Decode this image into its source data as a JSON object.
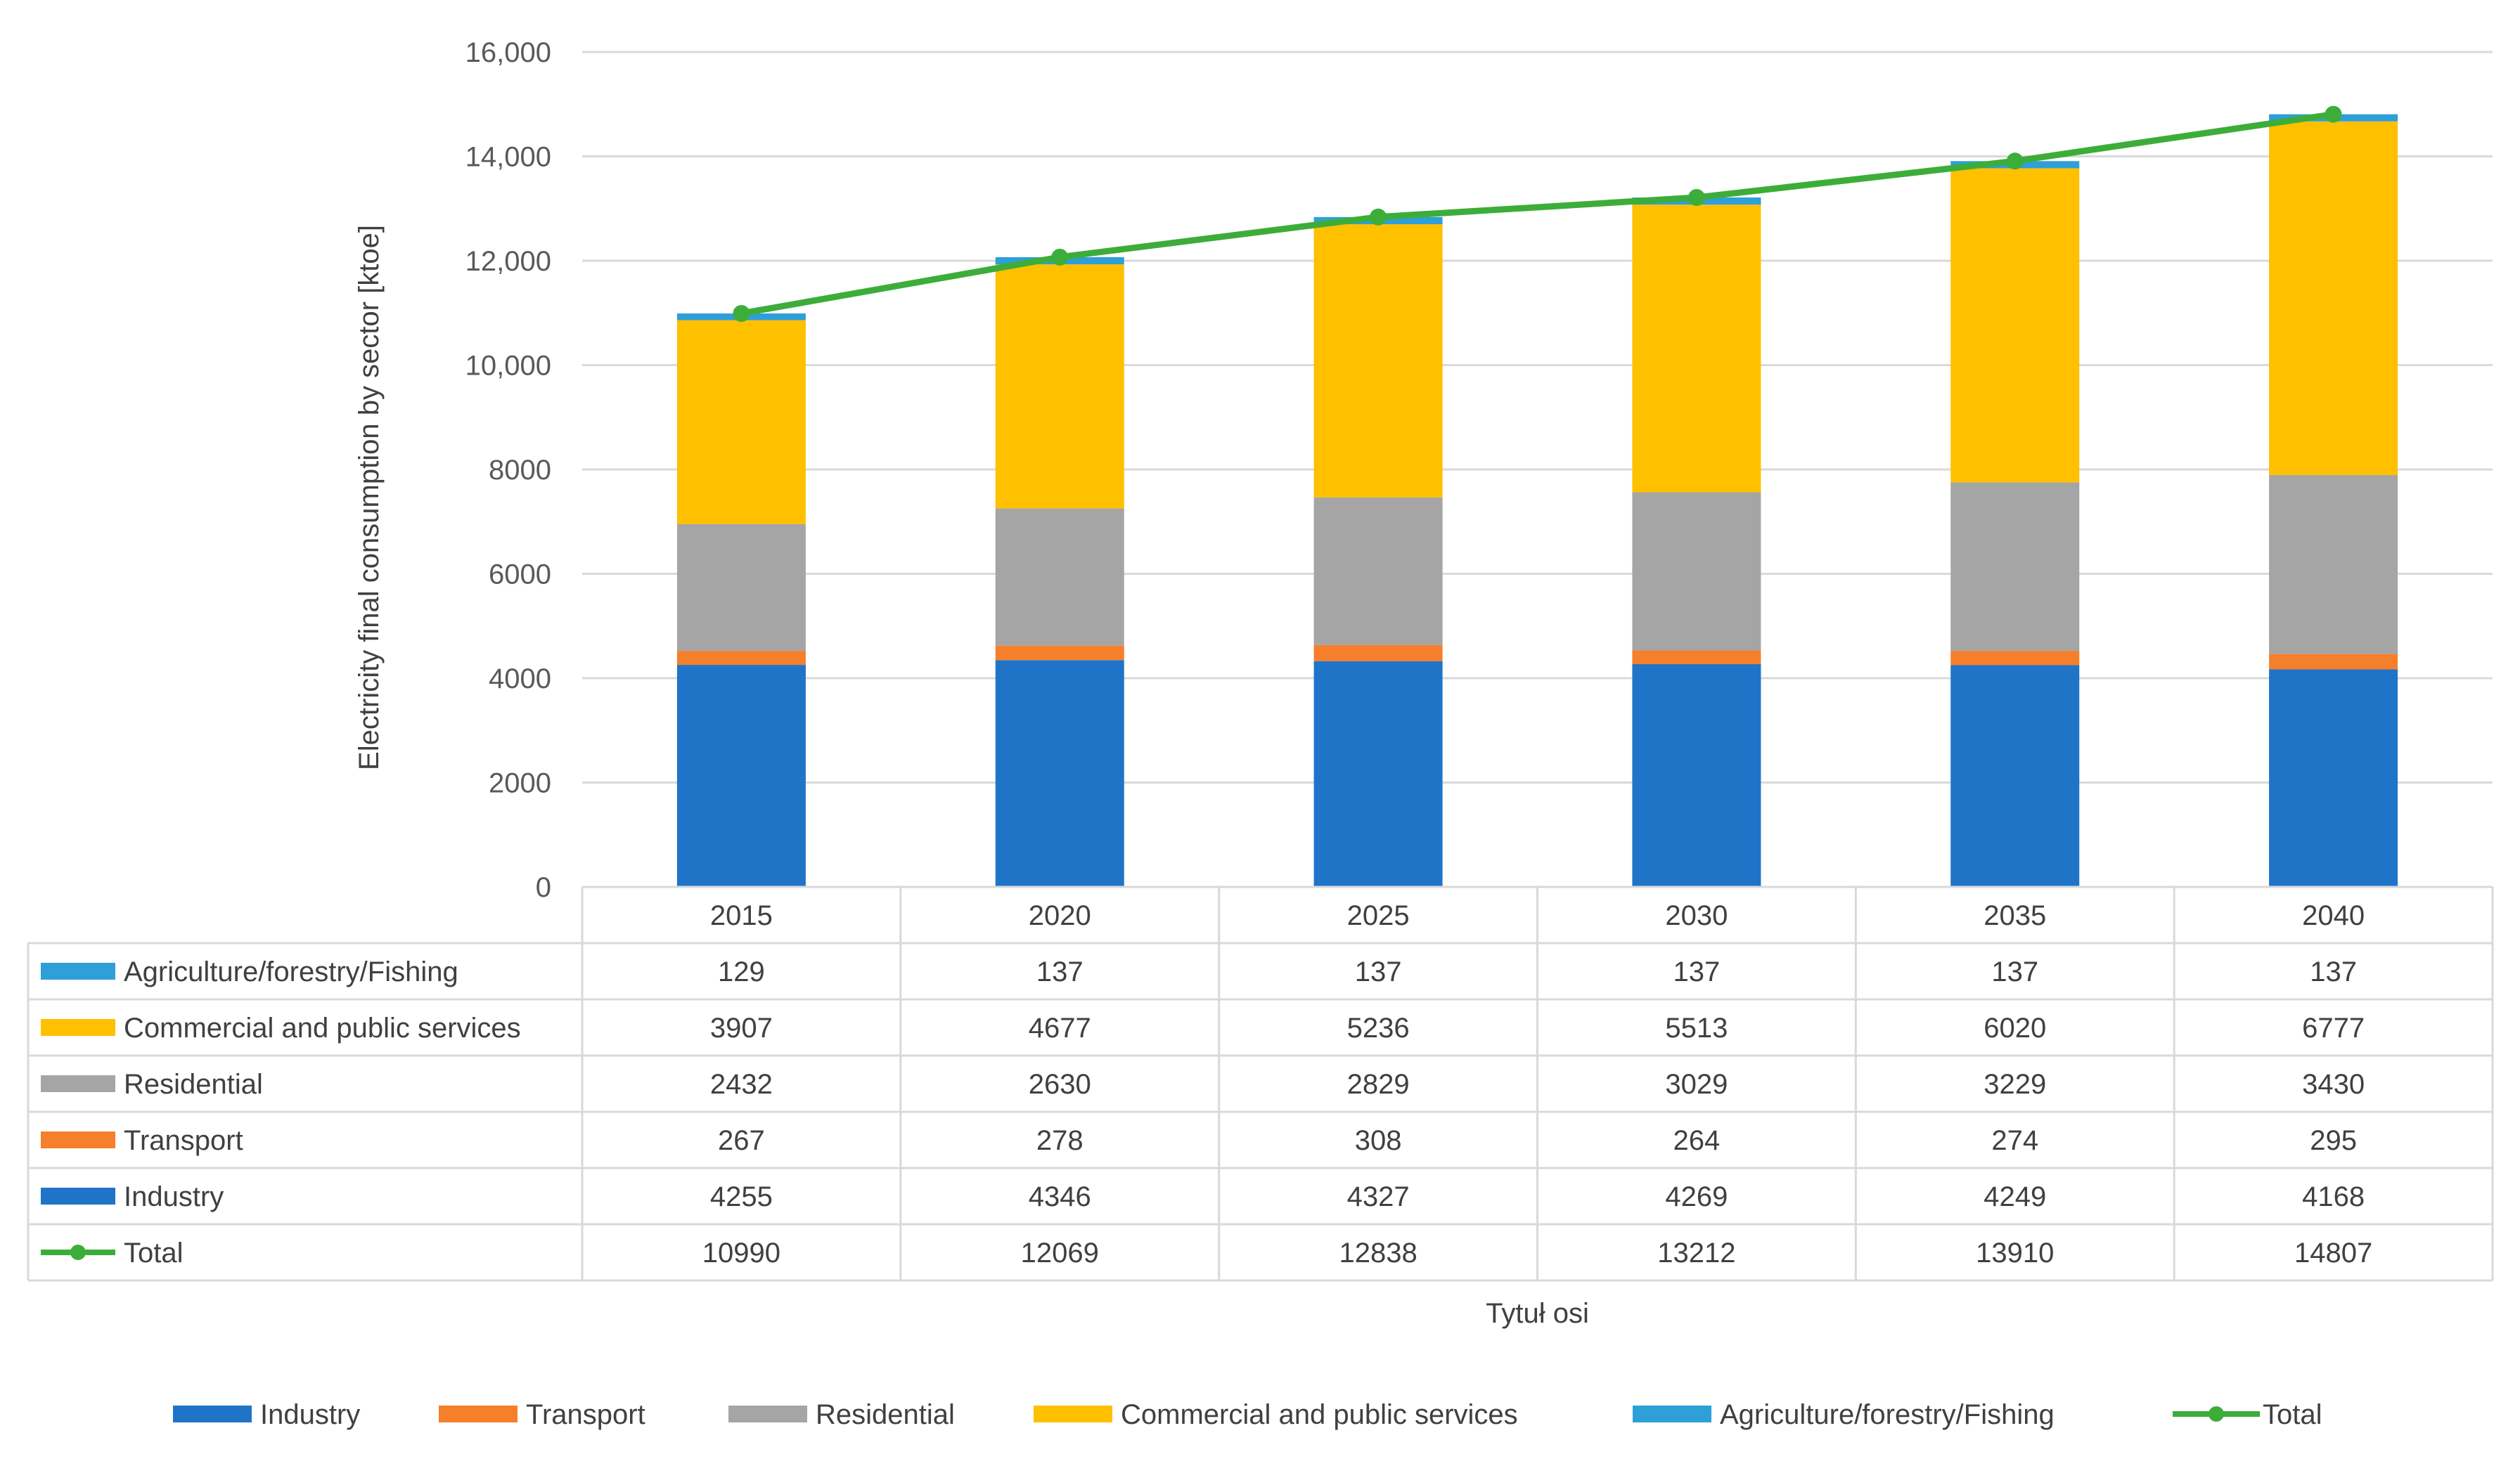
{
  "chart_data": {
    "type": "bar",
    "stacked": true,
    "ylabel": "Electricity final consumption by sector [ktoe]",
    "xlabel": "Tytuł osi",
    "ylim": [
      0,
      16000
    ],
    "yticks": [
      "0",
      "2000",
      "4000",
      "6000",
      "8000",
      "10,000",
      "12,000",
      "14,000",
      "16,000"
    ],
    "yticks_values": [
      0,
      2000,
      4000,
      6000,
      8000,
      10000,
      12000,
      14000,
      16000
    ],
    "categories": [
      "2015",
      "2020",
      "2025",
      "2030",
      "2035",
      "2040"
    ],
    "grid": true,
    "legend_position": "bottom",
    "data_table": true,
    "series": [
      {
        "name": "Industry",
        "kind": "bar",
        "color": "#1f74c8",
        "values": [
          4255,
          4346,
          4327,
          4269,
          4249,
          4168
        ]
      },
      {
        "name": "Transport",
        "kind": "bar",
        "color": "#f67f2b",
        "values": [
          267,
          278,
          308,
          264,
          274,
          295
        ]
      },
      {
        "name": "Residential",
        "kind": "bar",
        "color": "#a5a5a5",
        "values": [
          2432,
          2630,
          2829,
          3029,
          3229,
          3430
        ]
      },
      {
        "name": "Commercial and public services",
        "kind": "bar",
        "color": "#ffc000",
        "values": [
          3907,
          4677,
          5236,
          5513,
          6020,
          6777
        ]
      },
      {
        "name": "Agriculture/forestry/Fishing",
        "kind": "bar",
        "color": "#2f9fd8",
        "values": [
          129,
          137,
          137,
          137,
          137,
          137
        ]
      },
      {
        "name": "Total",
        "kind": "line",
        "color": "#3dad3a",
        "values": [
          10990,
          12069,
          12838,
          13212,
          13910,
          14807
        ]
      }
    ],
    "table_row_order": [
      "Agriculture/forestry/Fishing",
      "Commercial and public services",
      "Residential",
      "Transport",
      "Industry",
      "Total"
    ]
  }
}
